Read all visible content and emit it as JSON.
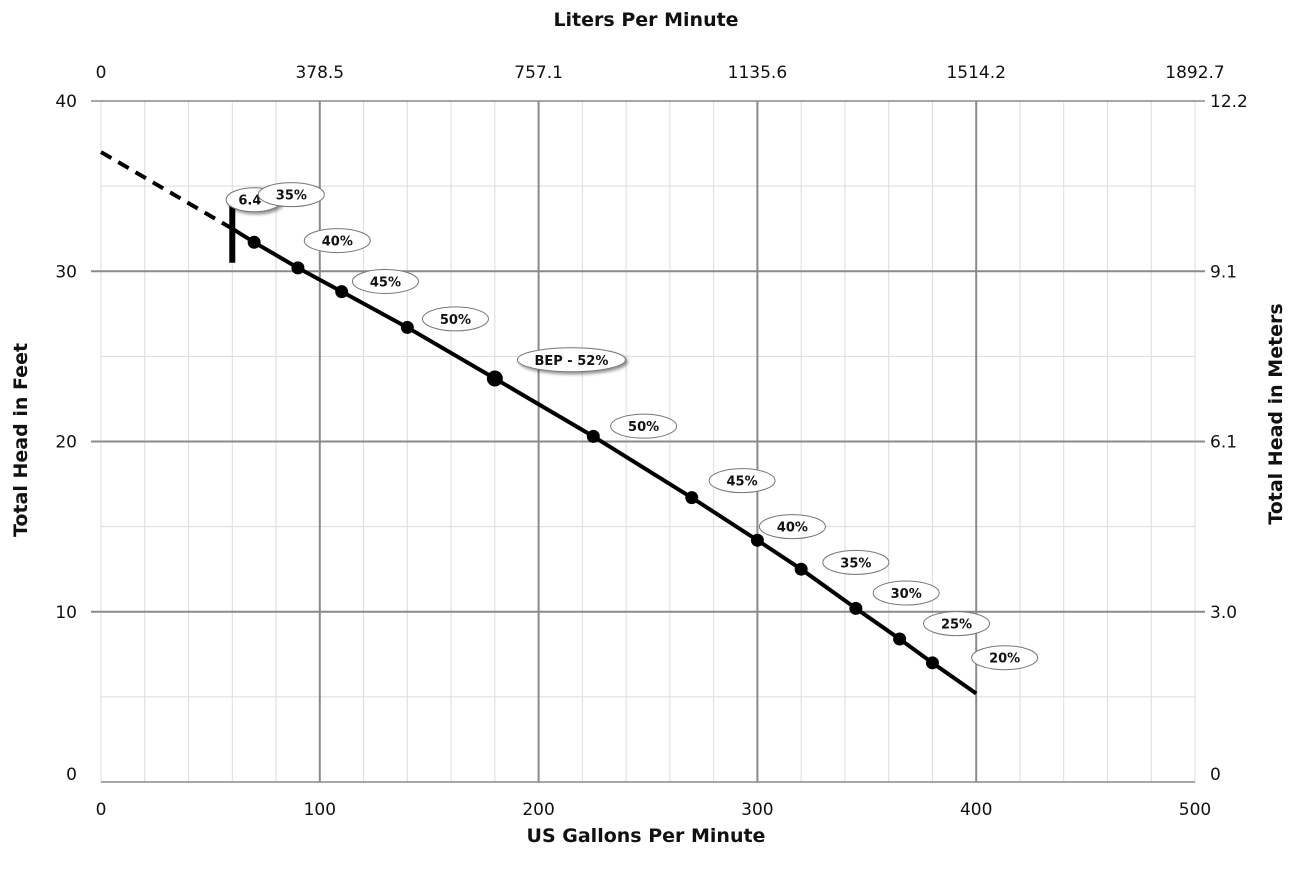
{
  "chart_data": {
    "type": "line",
    "xlabel": "US Gallons Per Minute",
    "x2label": "Liters Per Minute",
    "ylabel": "Total Head in Feet",
    "y2label": "Total Head in Meters",
    "xlim": [
      0,
      500
    ],
    "ylim": [
      0,
      40
    ],
    "x_ticks": [
      "0",
      "100",
      "200",
      "300",
      "400",
      "500"
    ],
    "x2_ticks": [
      "0",
      "378.5",
      "757.1",
      "1135.6",
      "1514.2",
      "1892.7"
    ],
    "y_ticks": [
      "0",
      "10",
      "20",
      "30",
      "40"
    ],
    "y2_ticks": [
      "0",
      "3.0",
      "6.1",
      "9.1",
      "12.2"
    ],
    "grid": true,
    "colors": {
      "curve": "#000000",
      "major_grid": "#8a8a8a",
      "minor_grid": "#dcdcdc"
    },
    "curve": {
      "dashed": [
        [
          0,
          37
        ],
        [
          60,
          32.5
        ]
      ],
      "solid": [
        [
          60,
          32.5
        ],
        [
          70,
          31.7
        ],
        [
          90,
          30.2
        ],
        [
          110,
          28.8
        ],
        [
          140,
          26.7
        ],
        [
          180,
          23.7
        ],
        [
          225,
          20.3
        ],
        [
          270,
          16.7
        ],
        [
          300,
          14.2
        ],
        [
          320,
          12.5
        ],
        [
          345,
          10.2
        ],
        [
          365,
          8.4
        ],
        [
          380,
          7.0
        ],
        [
          400,
          5.2
        ]
      ]
    },
    "impeller_marker": {
      "x": 60,
      "y_from": 30.5,
      "y_to": 34.5,
      "label": "6.4”",
      "label_at": [
        70,
        34.2
      ]
    },
    "points": [
      {
        "x": 70,
        "y": 31.7,
        "label": "35%",
        "label_at": [
          87,
          34.5
        ]
      },
      {
        "x": 90,
        "y": 30.2,
        "label": "40%",
        "label_at": [
          108,
          31.8
        ]
      },
      {
        "x": 110,
        "y": 28.8,
        "label": "45%",
        "label_at": [
          130,
          29.4
        ]
      },
      {
        "x": 140,
        "y": 26.7,
        "label": "50%",
        "label_at": [
          162,
          27.2
        ]
      },
      {
        "x": 180,
        "y": 23.7,
        "label": "BEP - 52%",
        "label_at": [
          215,
          24.8
        ]
      },
      {
        "x": 225,
        "y": 20.3,
        "label": "50%",
        "label_at": [
          248,
          20.9
        ]
      },
      {
        "x": 270,
        "y": 16.7,
        "label": "45%",
        "label_at": [
          293,
          17.7
        ]
      },
      {
        "x": 300,
        "y": 14.2,
        "label": "40%",
        "label_at": [
          316,
          15.0
        ]
      },
      {
        "x": 320,
        "y": 12.5,
        "label": "35%",
        "label_at": [
          345,
          12.9
        ]
      },
      {
        "x": 345,
        "y": 10.2,
        "label": "30%",
        "label_at": [
          368,
          11.1
        ]
      },
      {
        "x": 365,
        "y": 8.4,
        "label": "25%",
        "label_at": [
          391,
          9.3
        ]
      },
      {
        "x": 380,
        "y": 7.0,
        "label": "20%",
        "label_at": [
          413,
          7.3
        ]
      }
    ]
  }
}
